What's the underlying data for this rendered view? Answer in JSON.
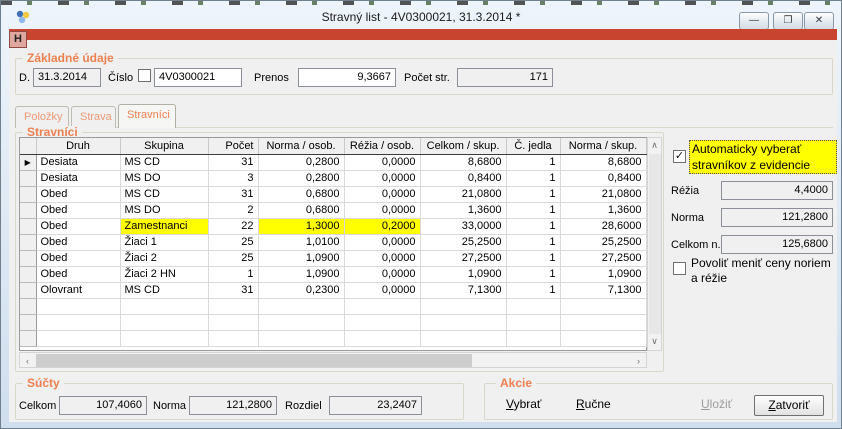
{
  "colors": {
    "accent_orange": "#ee8052",
    "highlight_yellow": "#ffff00",
    "command_bar_red": "#c8442f"
  },
  "icons": {
    "app": "app-icon",
    "minimize": "—",
    "maximize": "❐",
    "close": "✕",
    "row_pointer": "▶",
    "check": "✓",
    "scroll_left": "‹",
    "scroll_right": "›",
    "scroll_up": "∧",
    "scroll_down": "∨"
  },
  "window": {
    "title": "Stravný list - 4V0300021, 31.3.2014 *",
    "hotkey_button": "H"
  },
  "basic": {
    "group_label": "Základné údaje",
    "date_label": "D.",
    "date_value": "31.3.2014",
    "cislo_label": "Číslo",
    "cislo_checked": false,
    "cislo_value": "4V0300021",
    "prenos_label": "Prenos",
    "prenos_value": "9,3667",
    "pocet_str_label": "Počet str.",
    "pocet_str_value": "171"
  },
  "tabs": [
    {
      "label": "Položky",
      "active": false
    },
    {
      "label": "Strava",
      "active": false
    },
    {
      "label": "Stravníci",
      "active": true
    }
  ],
  "grid": {
    "group_label": "Stravníci",
    "columns": [
      "Druh",
      "Skupina",
      "Počet",
      "Norma / osob.",
      "Réžia / osob.",
      "Celkom / skup.",
      "Č. jedla",
      "Norma / skup."
    ],
    "rows": [
      {
        "druh": "Desiata",
        "skupina": "MS CD",
        "pocet": "31",
        "norma_osob": "0,2800",
        "rezia_osob": "0,0000",
        "celkom_skup": "8,6800",
        "c_jedla": "1",
        "norma_skup": "8,6800",
        "selected": true
      },
      {
        "druh": "Desiata",
        "skupina": "MS DO",
        "pocet": "3",
        "norma_osob": "0,2800",
        "rezia_osob": "0,0000",
        "celkom_skup": "0,8400",
        "c_jedla": "1",
        "norma_skup": "0,8400"
      },
      {
        "druh": "Obed",
        "skupina": "MS CD",
        "pocet": "31",
        "norma_osob": "0,6800",
        "rezia_osob": "0,0000",
        "celkom_skup": "21,0800",
        "c_jedla": "1",
        "norma_skup": "21,0800"
      },
      {
        "druh": "Obed",
        "skupina": "MS DO",
        "pocet": "2",
        "norma_osob": "0,6800",
        "rezia_osob": "0,0000",
        "celkom_skup": "1,3600",
        "c_jedla": "1",
        "norma_skup": "1,3600"
      },
      {
        "druh": "Obed",
        "skupina": "Zamestnanci",
        "pocet": "22",
        "norma_osob": "1,3000",
        "rezia_osob": "0,2000",
        "celkom_skup": "33,0000",
        "c_jedla": "1",
        "norma_skup": "28,6000",
        "highlight_cells": [
          "skupina",
          "norma_osob",
          "rezia_osob"
        ]
      },
      {
        "druh": "Obed",
        "skupina": "Žiaci 1",
        "pocet": "25",
        "norma_osob": "1,0100",
        "rezia_osob": "0,0000",
        "celkom_skup": "25,2500",
        "c_jedla": "1",
        "norma_skup": "25,2500"
      },
      {
        "druh": "Obed",
        "skupina": "Žiaci 2",
        "pocet": "25",
        "norma_osob": "1,0900",
        "rezia_osob": "0,0000",
        "celkom_skup": "27,2500",
        "c_jedla": "1",
        "norma_skup": "27,2500"
      },
      {
        "druh": "Obed",
        "skupina": "Žiaci 2 HN",
        "pocet": "1",
        "norma_osob": "1,0900",
        "rezia_osob": "0,0000",
        "celkom_skup": "1,0900",
        "c_jedla": "1",
        "norma_skup": "1,0900"
      },
      {
        "druh": "Olovrant",
        "skupina": "MS CD",
        "pocet": "31",
        "norma_osob": "0,2300",
        "rezia_osob": "0,0000",
        "celkom_skup": "7,1300",
        "c_jedla": "1",
        "norma_skup": "7,1300"
      }
    ],
    "empty_filler_rows": 3
  },
  "side_panel": {
    "auto_select_label": "Automaticky vyberať stravníkov z evidencie",
    "auto_select_checked": true,
    "rezia_label": "Réžia",
    "rezia_value": "4,4000",
    "norma_label": "Norma",
    "norma_value": "121,2800",
    "celkom_n_label": "Celkom n.",
    "celkom_n_value": "125,6800",
    "povolit_label": "Povoliť meniť ceny noriem a réžie",
    "povolit_checked": false
  },
  "sucty": {
    "group_label": "Súčty",
    "celkom_label": "Celkom",
    "celkom_value": "107,4060",
    "norma_label": "Norma",
    "norma_value": "121,2800",
    "rozdiel_label": "Rozdiel",
    "rozdiel_value": "23,2407"
  },
  "akcie": {
    "group_label": "Akcie",
    "vybrat_label": "Vybrať",
    "rucne_label": "Ručne",
    "ulozit_label": "Uložiť",
    "zatvorit_label": "Zatvoriť"
  }
}
